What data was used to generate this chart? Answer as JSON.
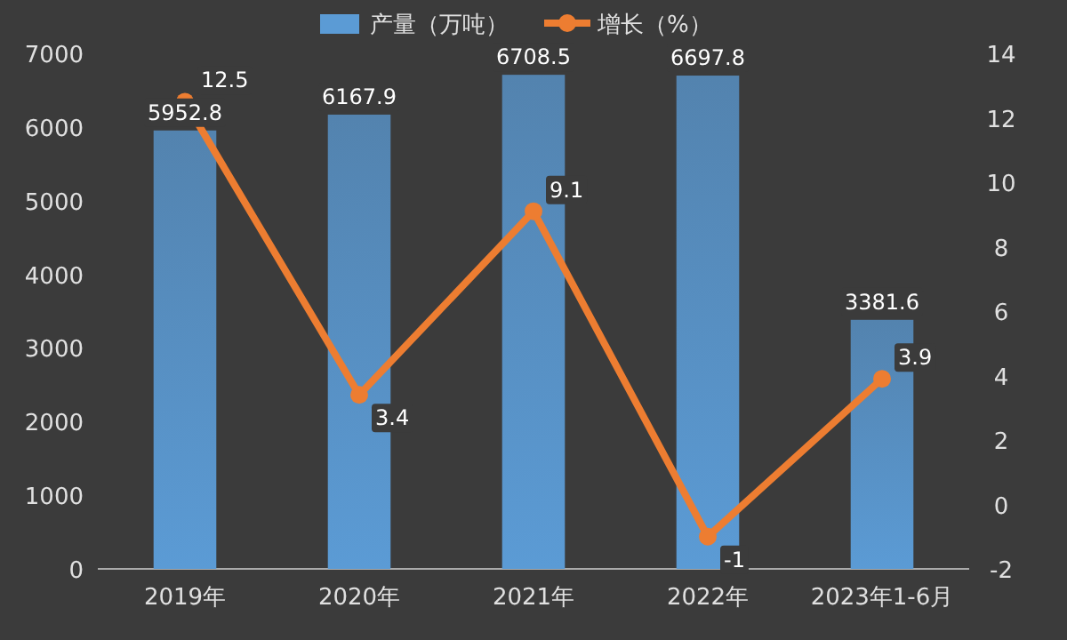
{
  "chart_data": {
    "type": "bar",
    "categories": [
      "2019年",
      "2020年",
      "2021年",
      "2022年",
      "2023年1-6月"
    ],
    "series": [
      {
        "name": "产量（万吨）",
        "color": "#5b9bd5",
        "values": [
          5952.8,
          6167.9,
          6708.5,
          6697.8,
          3381.6
        ]
      },
      {
        "name": "增长（%）",
        "type": "line",
        "axis": "y2",
        "color": "#ed7d31",
        "values": [
          12.5,
          3.4,
          9.1,
          -1,
          3.9
        ]
      }
    ],
    "ylim": [
      0,
      7000
    ],
    "yticks": [
      0,
      1000,
      2000,
      3000,
      4000,
      5000,
      6000,
      7000
    ],
    "y2lim": [
      -2,
      14
    ],
    "y2ticks": [
      -2,
      0,
      2,
      4,
      6,
      8,
      10,
      12,
      14
    ],
    "legend": "top",
    "marker": "circle",
    "data_labels": true
  }
}
